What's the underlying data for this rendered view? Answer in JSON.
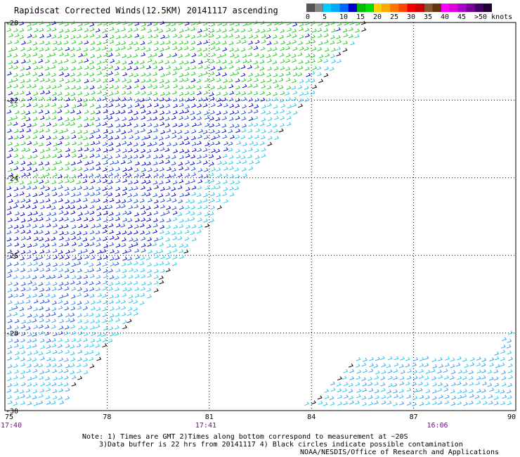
{
  "header": {
    "title": "Rapidscat Corrected Winds(12.5KM) 20141117 ascending"
  },
  "color_scale": {
    "colors": [
      "#555555",
      "#888888",
      "#00ccff",
      "#00aaff",
      "#0066ff",
      "#0000cc",
      "#00bb00",
      "#00dd00",
      "#ffcc00",
      "#ffaa00",
      "#ff7700",
      "#ff4400",
      "#ee0000",
      "#cc0000",
      "#885533",
      "#663311",
      "#ff00ff",
      "#dd00dd",
      "#aa00cc",
      "#770099",
      "#440066",
      "#220033"
    ],
    "labels": [
      "0",
      "5",
      "10",
      "15",
      "20",
      "25",
      "30",
      "35",
      "40",
      "45",
      ">50 knots"
    ],
    "unit": "knots"
  },
  "map": {
    "lon_ticks": [
      "75",
      "78",
      "81",
      "84",
      "87",
      "90"
    ],
    "lat_ticks": [
      "-20",
      "-22",
      "-24",
      "-26",
      "-28",
      "-30"
    ],
    "time_labels": [
      {
        "lon": 75,
        "text": "17:40"
      },
      {
        "lon": 80.9,
        "text": "17:41"
      },
      {
        "lon": 87.7,
        "text": "16:06"
      }
    ],
    "time_color": "#7a0a8c",
    "wind_colors": {
      "green": "#22cc22",
      "navy": "#0000cc",
      "blue": "#1a4fe0",
      "light_blue": "#3aa0ee",
      "cyan": "#22c8ee",
      "black": "#000000"
    }
  },
  "notes": {
    "line1": "Note: 1) Times are GMT 2)Times along bottom correspond to measurement at ~20S",
    "line2": "3)Data buffer is 22 hrs from 20141117 4) Black circles indicate possible contamination"
  },
  "credit": "NOAA/NESDIS/Office of Research and Applications"
}
